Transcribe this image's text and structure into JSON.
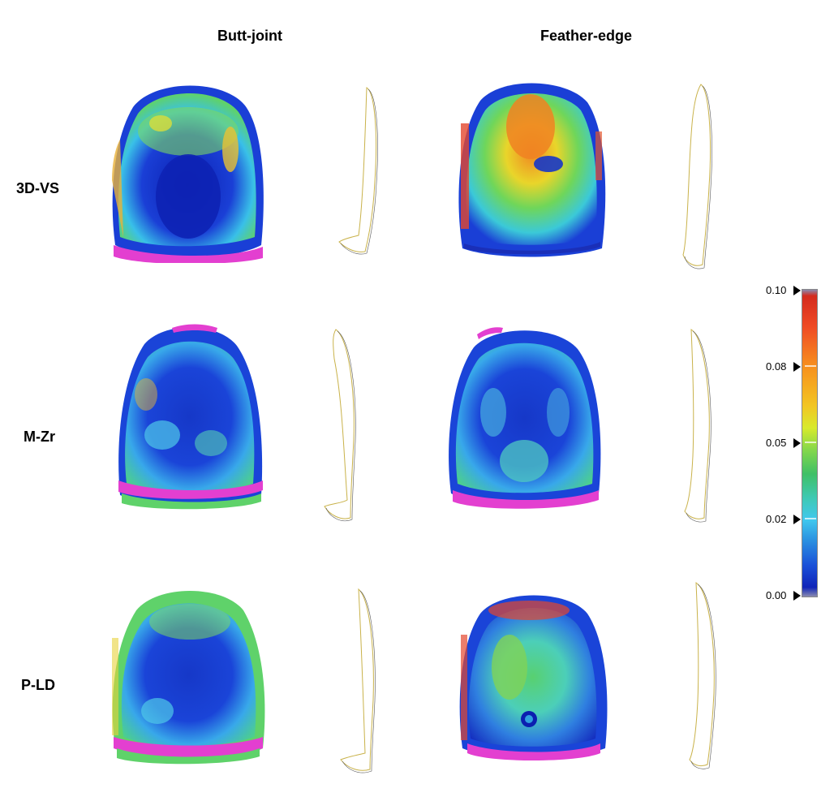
{
  "columns": {
    "butt_joint": "Butt-joint",
    "feather_edge": "Feather-edge"
  },
  "rows": {
    "r1": "3D-VS",
    "r2": "M-Zr",
    "r3": "P-LD"
  },
  "color_scale": {
    "labels": [
      "0.10",
      "0.08",
      "0.05",
      "0.02",
      "0.00"
    ],
    "colors": {
      "max": "#d42b1e",
      "high": "#f7901e",
      "mid": "#86d84a",
      "low": "#40c8ee",
      "min": "#1024b8",
      "margin": "#e33fd0"
    }
  }
}
